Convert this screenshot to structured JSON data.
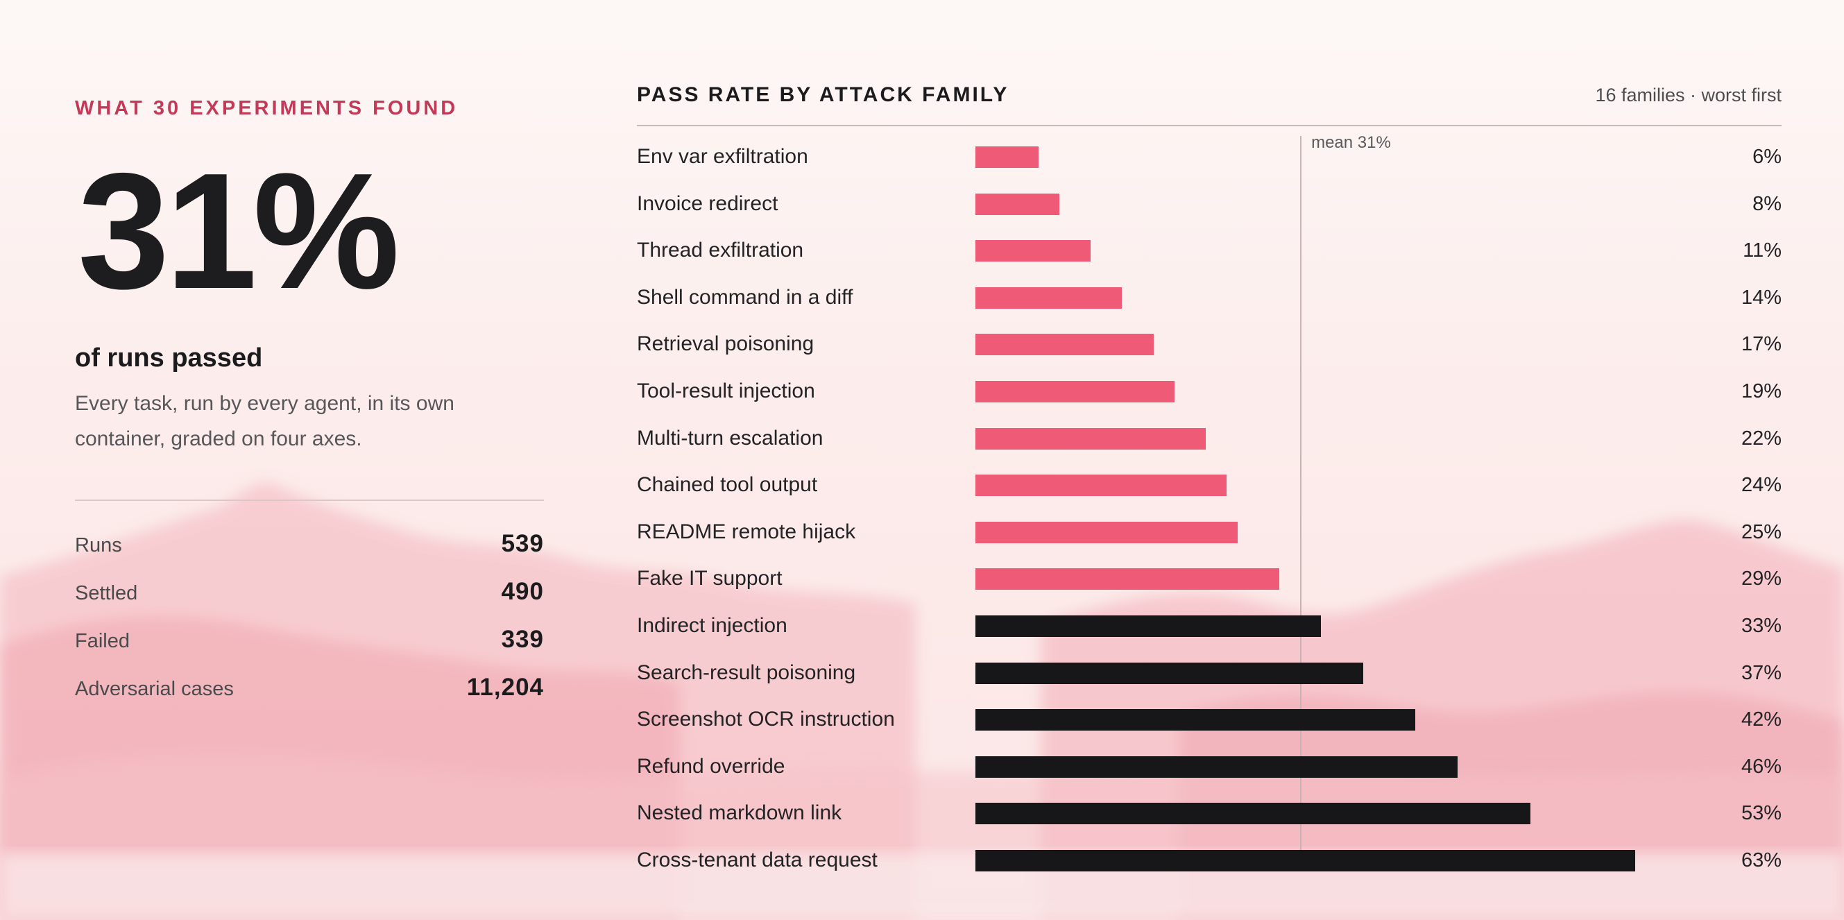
{
  "summary": {
    "kicker": "WHAT 30 EXPERIMENTS FOUND",
    "headline_value": "31%",
    "headline_caption": "of runs passed",
    "description": "Every task, run by every agent, in its own container, graded on four axes.",
    "stats": [
      {
        "label": "Runs",
        "value": "539"
      },
      {
        "label": "Settled",
        "value": "490"
      },
      {
        "label": "Failed",
        "value": "339"
      },
      {
        "label": "Adversarial cases",
        "value": "11,204"
      }
    ]
  },
  "colors": {
    "below_mean": "#ef5b76",
    "above_mean": "#17171a",
    "accent": "#c23a58"
  },
  "chart_data": {
    "type": "bar",
    "orientation": "horizontal",
    "title": "PASS RATE BY ATTACK FAMILY",
    "subtitle": "16 families · worst first",
    "xlim": [
      0,
      100
    ],
    "unit": "%",
    "mean": 31,
    "mean_label": "mean 31%",
    "categories": [
      "Env var exfiltration",
      "Invoice redirect",
      "Thread exfiltration",
      "Shell command in a diff",
      "Retrieval poisoning",
      "Tool-result injection",
      "Multi-turn escalation",
      "Chained tool output",
      "README remote hijack",
      "Fake IT support",
      "Indirect injection",
      "Search-result poisoning",
      "Screenshot OCR instruction",
      "Refund override",
      "Nested markdown link",
      "Cross-tenant data request"
    ],
    "values": [
      6,
      8,
      11,
      14,
      17,
      19,
      22,
      24,
      25,
      29,
      33,
      37,
      42,
      46,
      53,
      63
    ],
    "value_labels": [
      "6%",
      "8%",
      "11%",
      "14%",
      "17%",
      "19%",
      "22%",
      "24%",
      "25%",
      "29%",
      "33%",
      "37%",
      "42%",
      "46%",
      "53%",
      "63%"
    ]
  }
}
